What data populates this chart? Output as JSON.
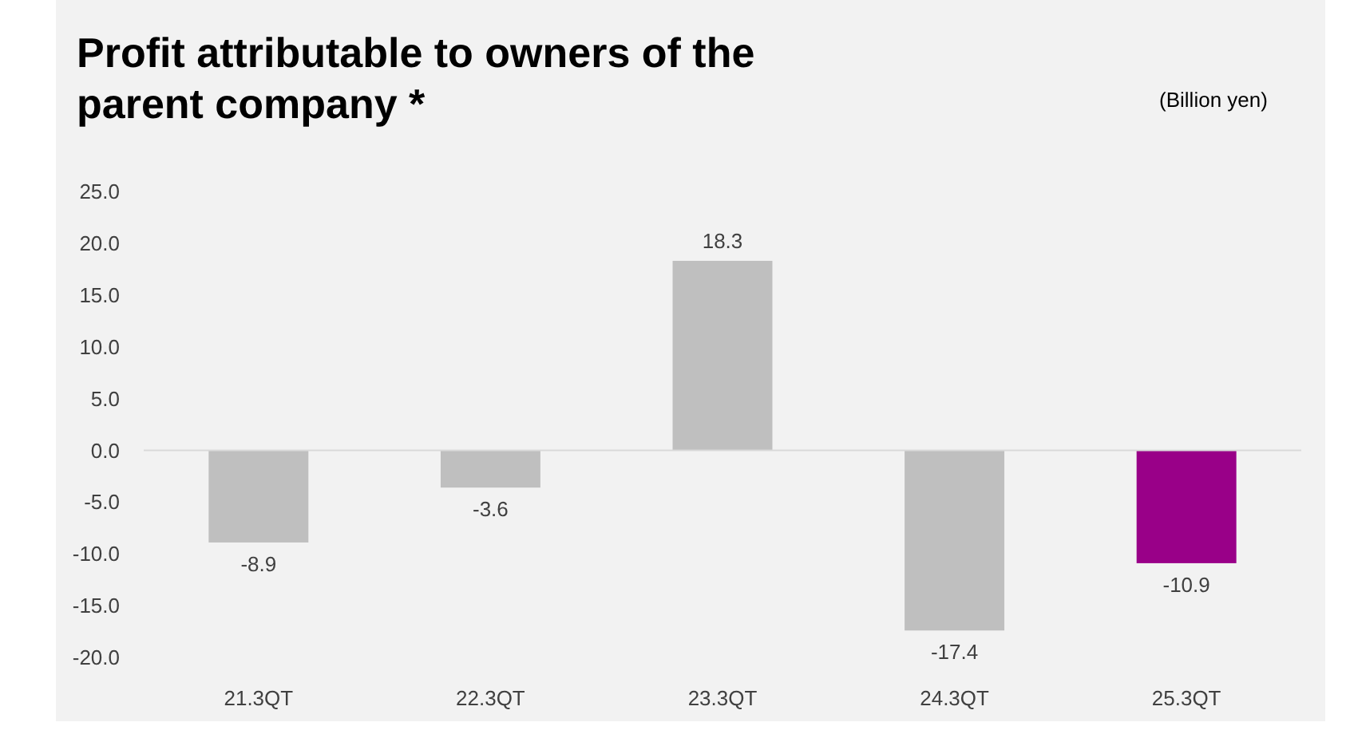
{
  "chart_data": {
    "type": "bar",
    "title": "Profit attributable to owners of the parent company *",
    "ylabel": "(Billion yen)",
    "categories": [
      "21.3QT",
      "22.3QT",
      "23.3QT",
      "24.3QT",
      "25.3QT"
    ],
    "values": [
      -8.9,
      -3.6,
      18.3,
      -17.4,
      -10.9
    ],
    "colors": [
      "#bfbfbf",
      "#bfbfbf",
      "#bfbfbf",
      "#bfbfbf",
      "#990088"
    ],
    "ylim": [
      -20,
      25
    ],
    "yticks": [
      {
        "value": -20,
        "label": "-20.0"
      },
      {
        "value": -15,
        "label": "-15.0"
      },
      {
        "value": -10,
        "label": "-10.0"
      },
      {
        "value": -5,
        "label": "-5.0"
      },
      {
        "value": 0,
        "label": "0.0"
      },
      {
        "value": 5,
        "label": "5.0"
      },
      {
        "value": 10,
        "label": "10.0"
      },
      {
        "value": 15,
        "label": "15.0"
      },
      {
        "value": 20,
        "label": "20.0"
      },
      {
        "value": 25,
        "label": "25.0"
      }
    ],
    "data_labels": true
  }
}
